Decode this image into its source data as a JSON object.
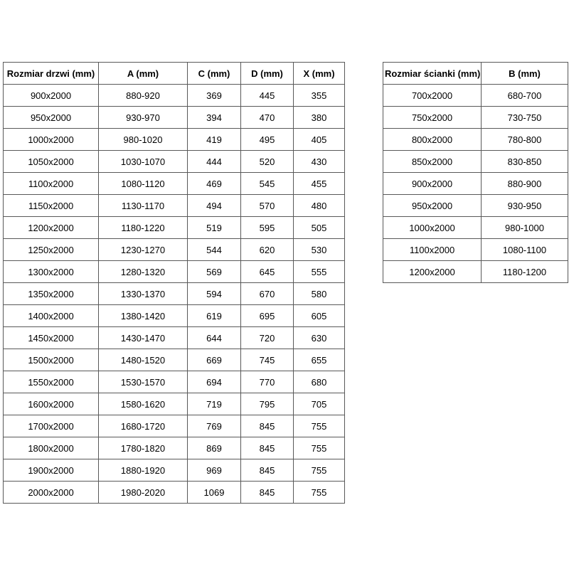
{
  "colors": {
    "background": "#ffffff",
    "border": "#595959",
    "text": "#000000"
  },
  "doors_table": {
    "headers": [
      "Rozmiar drzwi (mm)",
      "A (mm)",
      "C (mm)",
      "D (mm)",
      "X (mm)"
    ],
    "rows": [
      [
        "900x2000",
        "880-920",
        "369",
        "445",
        "355"
      ],
      [
        "950x2000",
        "930-970",
        "394",
        "470",
        "380"
      ],
      [
        "1000x2000",
        "980-1020",
        "419",
        "495",
        "405"
      ],
      [
        "1050x2000",
        "1030-1070",
        "444",
        "520",
        "430"
      ],
      [
        "1100x2000",
        "1080-1120",
        "469",
        "545",
        "455"
      ],
      [
        "1150x2000",
        "1130-1170",
        "494",
        "570",
        "480"
      ],
      [
        "1200x2000",
        "1180-1220",
        "519",
        "595",
        "505"
      ],
      [
        "1250x2000",
        "1230-1270",
        "544",
        "620",
        "530"
      ],
      [
        "1300x2000",
        "1280-1320",
        "569",
        "645",
        "555"
      ],
      [
        "1350x2000",
        "1330-1370",
        "594",
        "670",
        "580"
      ],
      [
        "1400x2000",
        "1380-1420",
        "619",
        "695",
        "605"
      ],
      [
        "1450x2000",
        "1430-1470",
        "644",
        "720",
        "630"
      ],
      [
        "1500x2000",
        "1480-1520",
        "669",
        "745",
        "655"
      ],
      [
        "1550x2000",
        "1530-1570",
        "694",
        "770",
        "680"
      ],
      [
        "1600x2000",
        "1580-1620",
        "719",
        "795",
        "705"
      ],
      [
        "1700x2000",
        "1680-1720",
        "769",
        "845",
        "755"
      ],
      [
        "1800x2000",
        "1780-1820",
        "869",
        "845",
        "755"
      ],
      [
        "1900x2000",
        "1880-1920",
        "969",
        "845",
        "755"
      ],
      [
        "2000x2000",
        "1980-2020",
        "1069",
        "845",
        "755"
      ]
    ]
  },
  "walls_table": {
    "headers": [
      "Rozmiar ścianki (mm)",
      "B (mm)"
    ],
    "rows": [
      [
        "700x2000",
        "680-700"
      ],
      [
        "750x2000",
        "730-750"
      ],
      [
        "800x2000",
        "780-800"
      ],
      [
        "850x2000",
        "830-850"
      ],
      [
        "900x2000",
        "880-900"
      ],
      [
        "950x2000",
        "930-950"
      ],
      [
        "1000x2000",
        "980-1000"
      ],
      [
        "1100x2000",
        "1080-1100"
      ],
      [
        "1200x2000",
        "1180-1200"
      ]
    ]
  }
}
